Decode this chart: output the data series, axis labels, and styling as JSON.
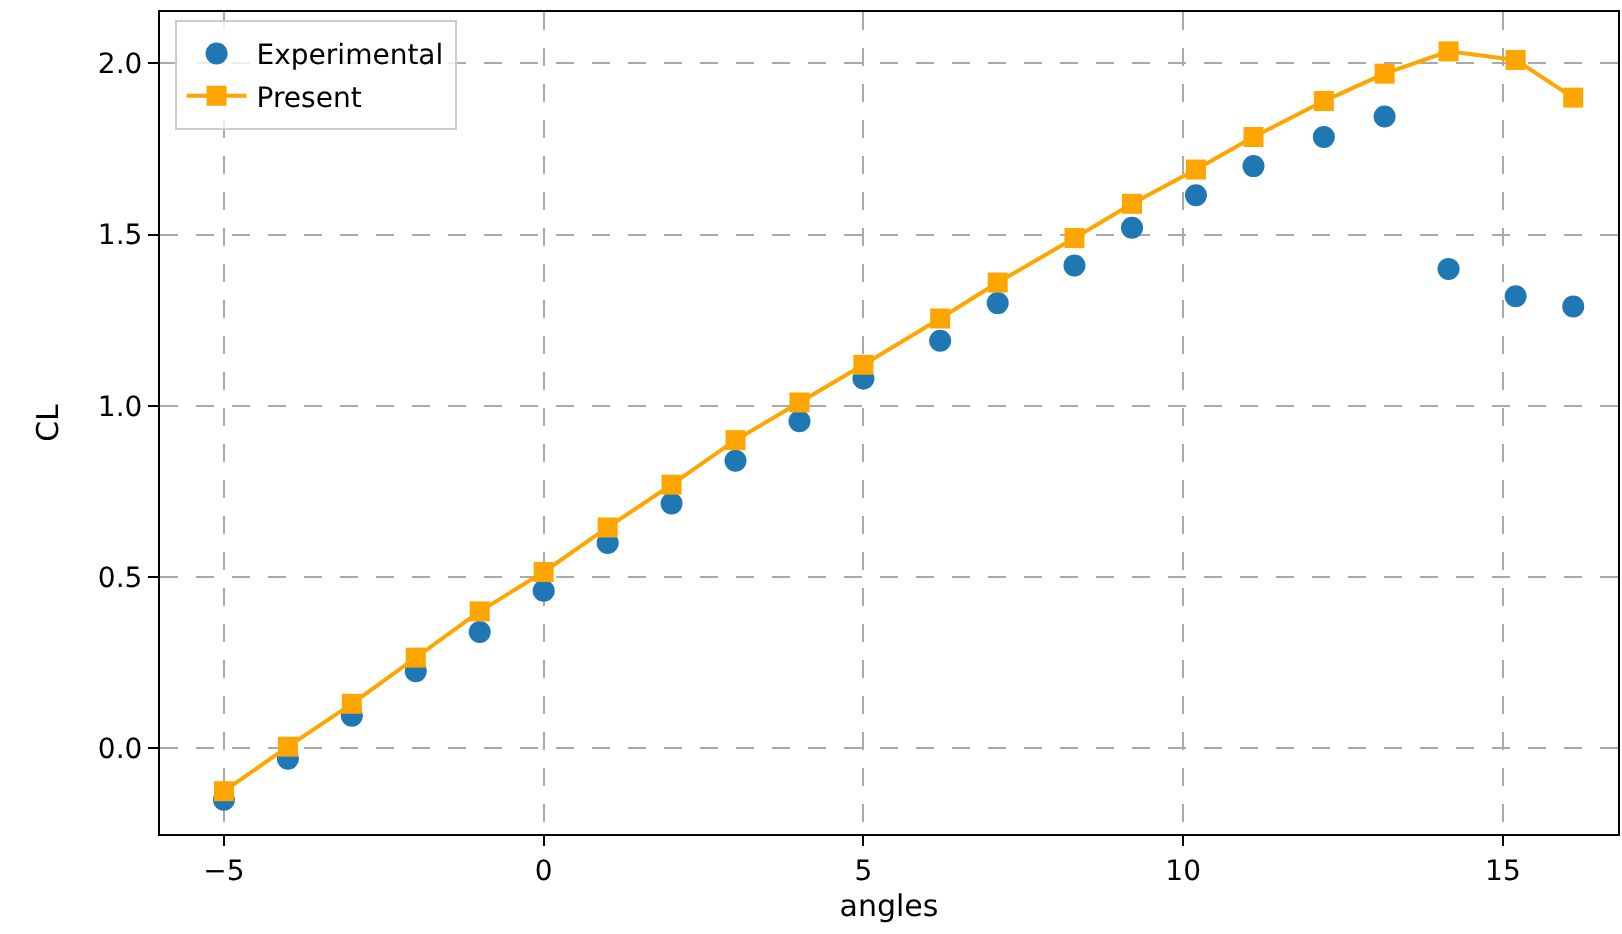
{
  "chart_data": {
    "type": "line",
    "xlabel": "angles",
    "ylabel": "CL",
    "xlim": [
      -6.0,
      16.8
    ],
    "ylim": [
      -0.25,
      2.15
    ],
    "xticks": [
      -5,
      0,
      5,
      10,
      15
    ],
    "yticks": [
      {
        "value": 0,
        "label": "0.0"
      },
      {
        "value": 0.5,
        "label": "0.5"
      },
      {
        "value": 1,
        "label": "1.0"
      },
      {
        "value": 1.5,
        "label": "1.5"
      },
      {
        "value": 2,
        "label": "2.0"
      }
    ],
    "grid": true,
    "legend": "top left",
    "series": [
      {
        "name": "Experimental",
        "type": "scatter",
        "marker": "circle",
        "color": "#1f77b4",
        "x": [
          -5,
          -4,
          -3,
          -2,
          -1,
          0,
          1,
          2,
          3,
          4,
          5,
          6.2,
          7.1,
          8.3,
          9.2,
          10.2,
          11.1,
          12.2,
          13.15,
          14.15,
          15.2,
          16.1
        ],
        "values": [
          -0.15,
          -0.03,
          0.095,
          0.225,
          0.34,
          0.46,
          0.6,
          0.715,
          0.84,
          0.955,
          1.08,
          1.19,
          1.3,
          1.41,
          1.52,
          1.615,
          1.7,
          1.785,
          1.845,
          1.4,
          1.32,
          1.29
        ]
      },
      {
        "name": "Present",
        "marker": "square",
        "line_style": "solid",
        "color": "#ffa500",
        "x": [
          -5,
          -4,
          -3,
          -2,
          -1,
          0,
          1,
          2,
          3,
          4,
          5,
          6.2,
          7.1,
          8.3,
          9.2,
          10.2,
          11.1,
          12.2,
          13.15,
          14.15,
          15.2,
          16.1
        ],
        "values": [
          -0.125,
          0.005,
          0.13,
          0.265,
          0.4,
          0.515,
          0.645,
          0.77,
          0.9,
          1.01,
          1.12,
          1.255,
          1.36,
          1.49,
          1.59,
          1.69,
          1.785,
          1.89,
          1.97,
          2.035,
          2.01,
          1.9
        ]
      }
    ]
  }
}
